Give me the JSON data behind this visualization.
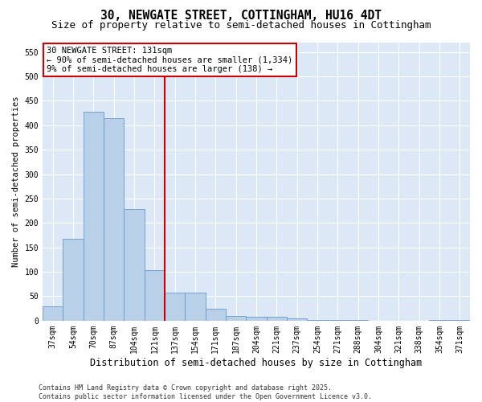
{
  "title": "30, NEWGATE STREET, COTTINGHAM, HU16 4DT",
  "subtitle": "Size of property relative to semi-detached houses in Cottingham",
  "xlabel": "Distribution of semi-detached houses by size in Cottingham",
  "ylabel": "Number of semi-detached properties",
  "categories": [
    "37sqm",
    "54sqm",
    "70sqm",
    "87sqm",
    "104sqm",
    "121sqm",
    "137sqm",
    "154sqm",
    "171sqm",
    "187sqm",
    "204sqm",
    "221sqm",
    "237sqm",
    "254sqm",
    "271sqm",
    "288sqm",
    "304sqm",
    "321sqm",
    "338sqm",
    "354sqm",
    "371sqm"
  ],
  "values": [
    30,
    167,
    428,
    415,
    228,
    103,
    58,
    58,
    24,
    10,
    8,
    8,
    4,
    2,
    1,
    1,
    0,
    0,
    0,
    1,
    2
  ],
  "bar_color": "#b8d0e8",
  "bar_edge_color": "#6699cc",
  "vline_color": "#cc0000",
  "vline_x_index": 6,
  "annotation_text_line1": "30 NEWGATE STREET: 131sqm",
  "annotation_text_line2": "← 90% of semi-detached houses are smaller (1,334)",
  "annotation_text_line3": "9% of semi-detached houses are larger (138) →",
  "annotation_box_facecolor": "white",
  "annotation_box_edgecolor": "#cc0000",
  "ylim": [
    0,
    570
  ],
  "yticks": [
    0,
    50,
    100,
    150,
    200,
    250,
    300,
    350,
    400,
    450,
    500,
    550
  ],
  "footer": "Contains HM Land Registry data © Crown copyright and database right 2025.\nContains public sector information licensed under the Open Government Licence v3.0.",
  "fig_bg_color": "#ffffff",
  "plot_bg_color": "#dce8f5",
  "grid_color": "#ffffff",
  "title_fontsize": 10.5,
  "subtitle_fontsize": 9,
  "xlabel_fontsize": 8.5,
  "ylabel_fontsize": 7.5,
  "tick_fontsize": 7,
  "annot_fontsize": 7.5,
  "footer_fontsize": 6
}
